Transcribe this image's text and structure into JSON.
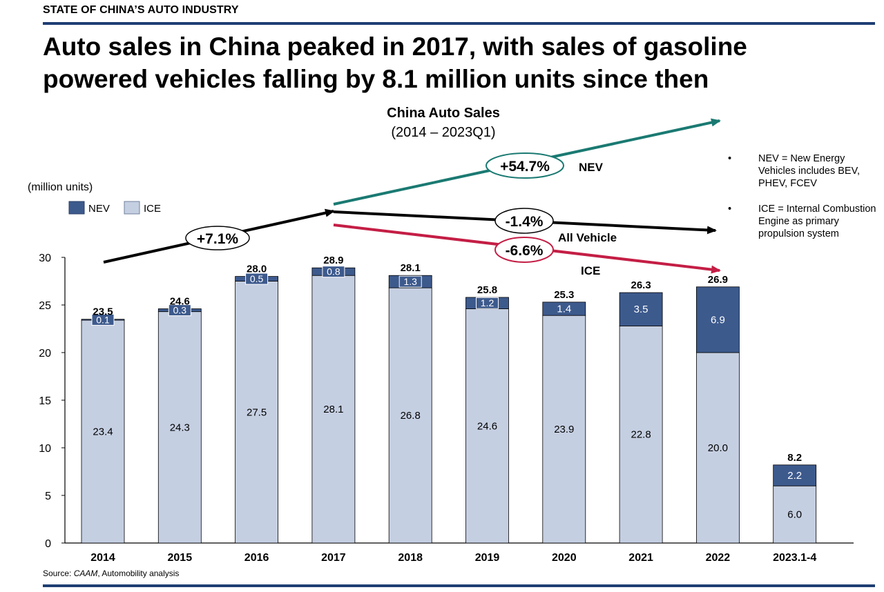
{
  "header": {
    "kicker": "STATE OF CHINA’S AUTO INDUSTRY",
    "headline": "Auto sales in China peaked in 2017, with sales of gasoline powered vehicles falling by 8.1 million units since then"
  },
  "source": {
    "prefix": "Source: ",
    "italic": "CAAM",
    "suffix": ", Automobility analysis"
  },
  "notes": [
    {
      "bullet": "•",
      "text": "NEV = New Energy Vehicles includes BEV, PHEV, FCEV"
    },
    {
      "bullet": "•",
      "text": "ICE = Internal Combustion Engine as primary propulsion system"
    }
  ],
  "colors": {
    "nev": "#3d5a8d",
    "ice": "#c5cfe2",
    "rule": "#1f3e73",
    "nev_trend": "#1a7a72",
    "ice_trend": "#c41e45",
    "all_trend": "#000000"
  },
  "chart_data": {
    "type": "bar",
    "stacked": true,
    "title": "China Auto Sales",
    "subtitle": "(2014 – 2023Q1)",
    "unit_label": "(million units)",
    "ylim": [
      0,
      30
    ],
    "yticks": [
      0,
      5,
      10,
      15,
      20,
      25,
      30
    ],
    "categories": [
      "2014",
      "2015",
      "2016",
      "2017",
      "2018",
      "2019",
      "2020",
      "2021",
      "2022",
      "2023.1-4"
    ],
    "series": [
      {
        "name": "ICE",
        "values": [
          23.4,
          24.3,
          27.5,
          28.1,
          26.8,
          24.6,
          23.9,
          22.8,
          20.0,
          6.0
        ],
        "labels": [
          "23.4",
          "24.3",
          "27.5",
          "28.1",
          "26.8",
          "24.6",
          "23.9",
          "22.8",
          "20.0",
          "6.0"
        ]
      },
      {
        "name": "NEV",
        "values": [
          0.1,
          0.3,
          0.5,
          0.8,
          1.3,
          1.2,
          1.4,
          3.5,
          6.9,
          2.2
        ],
        "labels": [
          "0.1",
          "0.3",
          "0.5",
          "0.8",
          "1.3",
          "1.2",
          "1.4",
          "3.5",
          "6.9",
          "2.2"
        ]
      }
    ],
    "totals": [
      "23.5",
      "24.6",
      "28.0",
      "28.9",
      "28.1",
      "25.8",
      "25.3",
      "26.3",
      "26.9",
      "8.2"
    ],
    "legend": [
      "NEV",
      "ICE"
    ],
    "legend_position": "top-left",
    "grid": false,
    "annotations": [
      {
        "label": "+7.1%",
        "series": "All vehicle growth 2014–2017"
      },
      {
        "label": "+54.7%",
        "tag": "NEV"
      },
      {
        "label": "-1.4%",
        "tag": "All Vehicle"
      },
      {
        "label": "-6.6%",
        "tag": "ICE"
      }
    ]
  }
}
